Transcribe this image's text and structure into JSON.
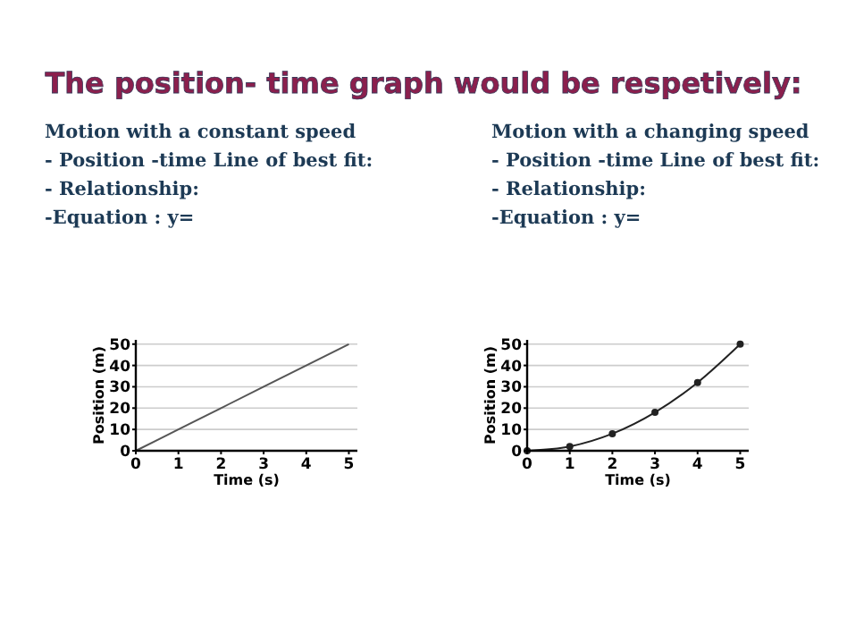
{
  "chart_data": [
    {
      "type": "other",
      "title": "The position- time graph would be respetively:"
    },
    {
      "type": "line",
      "annotations": [
        "Motion with a constant speed",
        "- Position -time Line of best fit:",
        "- Relationship:",
        "-Equation : y="
      ],
      "xlabel": "Time (s)",
      "ylabel": "Position (m)",
      "x": [
        0,
        1,
        2,
        3,
        4,
        5
      ],
      "series": [
        {
          "color": "#555555",
          "values": [
            0,
            10,
            20,
            30,
            40,
            50
          ],
          "marker": "none"
        }
      ],
      "xlim": [
        0,
        5.2
      ],
      "ylim": [
        0,
        52
      ],
      "xticks": [
        0,
        1,
        2,
        3,
        4,
        5
      ],
      "yticks": [
        0,
        10,
        20,
        30,
        40,
        50
      ],
      "grid": "y",
      "line_style": "solid"
    },
    {
      "type": "line",
      "annotations": [
        "Motion with a changing speed",
        "- Position -time Line of best fit:",
        "- Relationship:",
        "-Equation : y="
      ],
      "xlabel": "Time (s)",
      "ylabel": "Position (m)",
      "x": [
        0,
        1,
        2,
        3,
        4,
        5
      ],
      "series": [
        {
          "color": "#222222",
          "values": [
            0,
            2,
            8,
            18,
            32,
            50
          ],
          "marker": "circle"
        }
      ],
      "xlim": [
        0,
        5.2
      ],
      "ylim": [
        0,
        52
      ],
      "xticks": [
        0,
        1,
        2,
        3,
        4,
        5
      ],
      "yticks": [
        0,
        10,
        20,
        30,
        40,
        50
      ],
      "grid": "y",
      "line_style": "solid"
    }
  ]
}
